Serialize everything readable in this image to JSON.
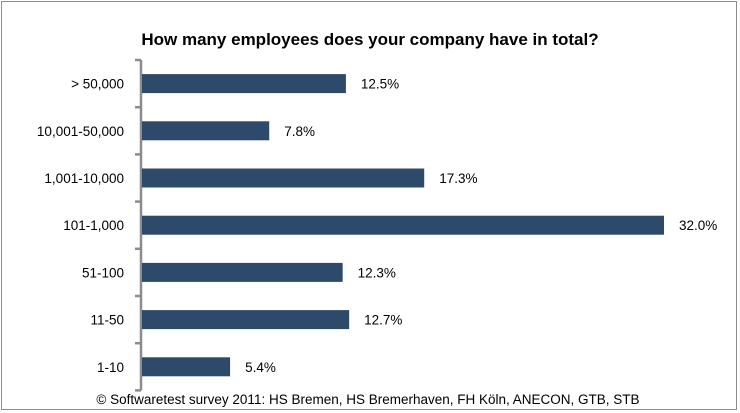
{
  "chart_data": {
    "type": "bar",
    "orientation": "horizontal",
    "title": "How many employees does your company have in total?",
    "categories": [
      "> 50,000",
      "10,001-50,000",
      "1,001-10,000",
      "101-1,000",
      "51-100",
      "11-50",
      "1-10"
    ],
    "values": [
      12.5,
      7.8,
      17.3,
      32.0,
      12.3,
      12.7,
      5.4
    ],
    "value_labels": [
      "12.5%",
      "7.8%",
      "17.3%",
      "32.0%",
      "12.3%",
      "12.7%",
      "5.4%"
    ],
    "unit": "%",
    "xlim": [
      0,
      32.0
    ],
    "grid": false,
    "legend": "none",
    "bar_color": "#2e4a6b",
    "axis_color": "#8c8c8c"
  },
  "footer": {
    "note": "© Softwaretest survey 2011: HS Bremen, HS Bremerhaven, FH Köln, ANECON, GTB, STB"
  }
}
